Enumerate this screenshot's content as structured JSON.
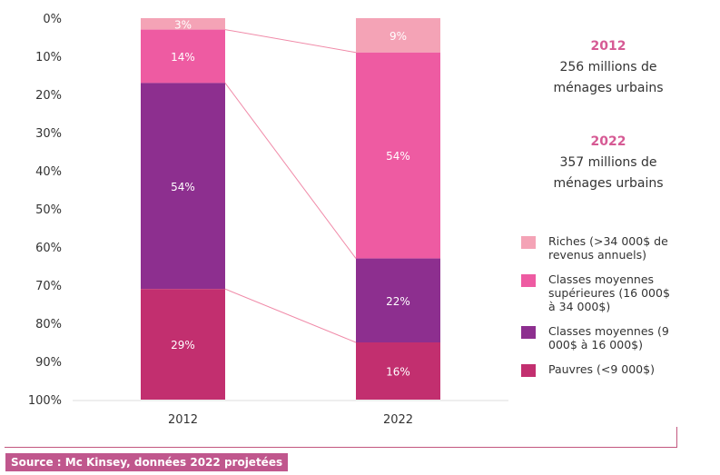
{
  "chart_data": {
    "type": "bar",
    "stacked": true,
    "orientation": "vertical",
    "y_inverted": true,
    "categories": [
      "2012",
      "2022"
    ],
    "ylim": [
      0,
      100
    ],
    "yticks": [
      "0%",
      "10%",
      "20%",
      "30%",
      "40%",
      "50%",
      "60%",
      "70%",
      "80%",
      "90%",
      "100%"
    ],
    "grid": false,
    "legend_placement": "right",
    "series": [
      {
        "name": "Riches (>34 000$ de revenus annuels)",
        "values": [
          3,
          9
        ],
        "labels": [
          "3%",
          "9%"
        ],
        "color": "#f4a3b6"
      },
      {
        "name": "Classes moyennes supérieures (16 000$ à 34 000$)",
        "values": [
          14,
          54
        ],
        "labels": [
          "14%",
          "54%"
        ],
        "color": "#ee5ba2"
      },
      {
        "name": "Classes moyennes (9 000$ à 16 000$)",
        "values": [
          54,
          22
        ],
        "labels": [
          "54%",
          "22%"
        ],
        "color": "#8d2f8f"
      },
      {
        "name": "Pauvres (<9 000$)",
        "values": [
          29,
          16
        ],
        "labels": [
          "29%",
          "16%"
        ],
        "color": "#c22f6f"
      }
    ]
  },
  "info": [
    {
      "year": "2012",
      "text1": "256 millions de",
      "text2": "ménages urbains"
    },
    {
      "year": "2022",
      "text1": "357 millions de",
      "text2": "ménages urbains"
    }
  ],
  "legend": {
    "items": [
      "Riches (>34 000$ de revenus annuels)",
      "Classes moyennes supérieures (16 000$ à 34 000$)",
      "Classes moyennes (9 000$ à 16 000$)",
      "Pauvres (<9 000$)"
    ]
  },
  "source": "Source : Mc Kinsey, données 2022 projetées",
  "colors": {
    "accent": "#d65a94",
    "source_bg": "#c0578d"
  }
}
